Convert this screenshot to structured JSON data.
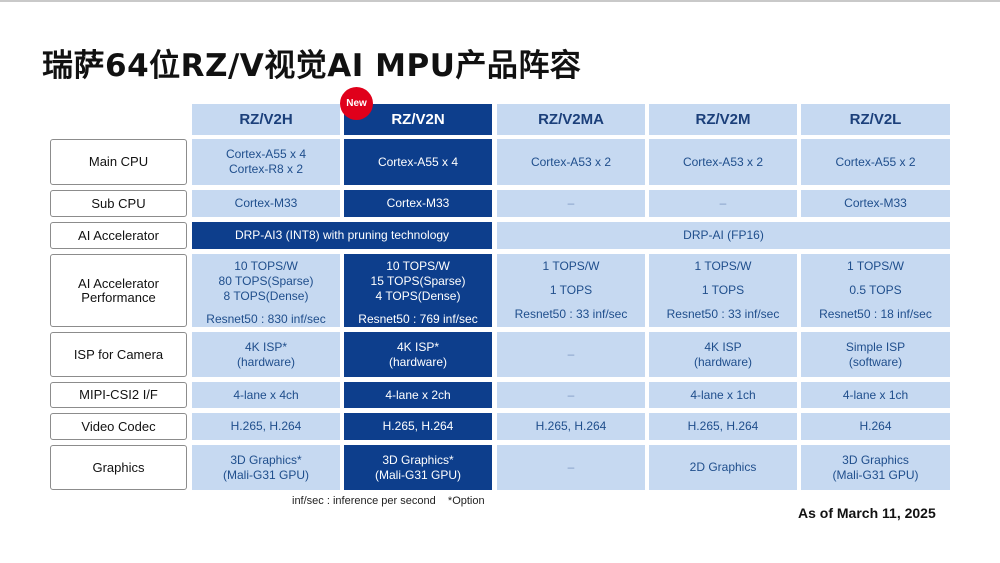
{
  "title": "瑞萨64位RZ/V视觉AI MPU产品阵容",
  "badge": "New",
  "columns": [
    "RZ/V2H",
    "RZ/V2N",
    "RZ/V2MA",
    "RZ/V2M",
    "RZ/V2L"
  ],
  "rows": {
    "main_cpu": {
      "label": "Main CPU",
      "v2h": [
        "Cortex-A55 x 4",
        "Cortex-R8 x 2"
      ],
      "v2n": "Cortex-A55 x 4",
      "v2ma": "Cortex-A53 x 2",
      "v2m": "Cortex-A53 x 2",
      "v2l": "Cortex-A55 x 2"
    },
    "sub_cpu": {
      "label": "Sub CPU",
      "v2h": "Cortex-M33",
      "v2n": "Cortex-M33",
      "v2ma": "–",
      "v2m": "–",
      "v2l": "Cortex-M33"
    },
    "ai_accel": {
      "label": "AI Accelerator",
      "drp_ai3": "DRP-AI3 (INT8) with pruning technology",
      "drp_ai": "DRP-AI (FP16)"
    },
    "ai_perf": {
      "label": [
        "AI Accelerator",
        "Performance"
      ],
      "v2h": [
        "10 TOPS/W",
        "80 TOPS(Sparse)",
        "8 TOPS(Dense)",
        "Resnet50 : 830 inf/sec"
      ],
      "v2n": [
        "10 TOPS/W",
        "15 TOPS(Sparse)",
        "4 TOPS(Dense)",
        "Resnet50 : 769 inf/sec"
      ],
      "v2ma": [
        "1 TOPS/W",
        "1 TOPS",
        "Resnet50 : 33 inf/sec"
      ],
      "v2m": [
        "1 TOPS/W",
        "1 TOPS",
        "Resnet50 : 33 inf/sec"
      ],
      "v2l": [
        "1 TOPS/W",
        "0.5 TOPS",
        "Resnet50 : 18 inf/sec"
      ]
    },
    "isp": {
      "label": "ISP for Camera",
      "v2h": [
        "4K ISP*",
        "(hardware)"
      ],
      "v2n": [
        "4K ISP*",
        "(hardware)"
      ],
      "v2ma": "–",
      "v2m": [
        "4K ISP",
        "(hardware)"
      ],
      "v2l": [
        "Simple ISP",
        "(software)"
      ]
    },
    "mipi": {
      "label": "MIPI-CSI2 I/F",
      "v2h": "4-lane x 4ch",
      "v2n": "4-lane x 2ch",
      "v2ma": "–",
      "v2m": "4-lane x 1ch",
      "v2l": "4-lane x 1ch"
    },
    "codec": {
      "label": "Video Codec",
      "v2h": "H.265, H.264",
      "v2n": "H.265, H.264",
      "v2ma": "H.265, H.264",
      "v2m": "H.265, H.264",
      "v2l": "H.264"
    },
    "graphics": {
      "label": "Graphics",
      "v2h": [
        "3D Graphics*",
        "(Mali-G31 GPU)"
      ],
      "v2n": [
        "3D Graphics*",
        "(Mali-G31 GPU)"
      ],
      "v2ma": "–",
      "v2m": "2D Graphics",
      "v2l": [
        "3D Graphics",
        "(Mali-G31 GPU)"
      ]
    }
  },
  "footnote": "inf/sec : inference per second    *Option",
  "date": "As of March 11, 2025",
  "colors": {
    "light_cell": "#c6d9f1",
    "dark_cell": "#0d3e8c",
    "badge": "#e0001b"
  }
}
